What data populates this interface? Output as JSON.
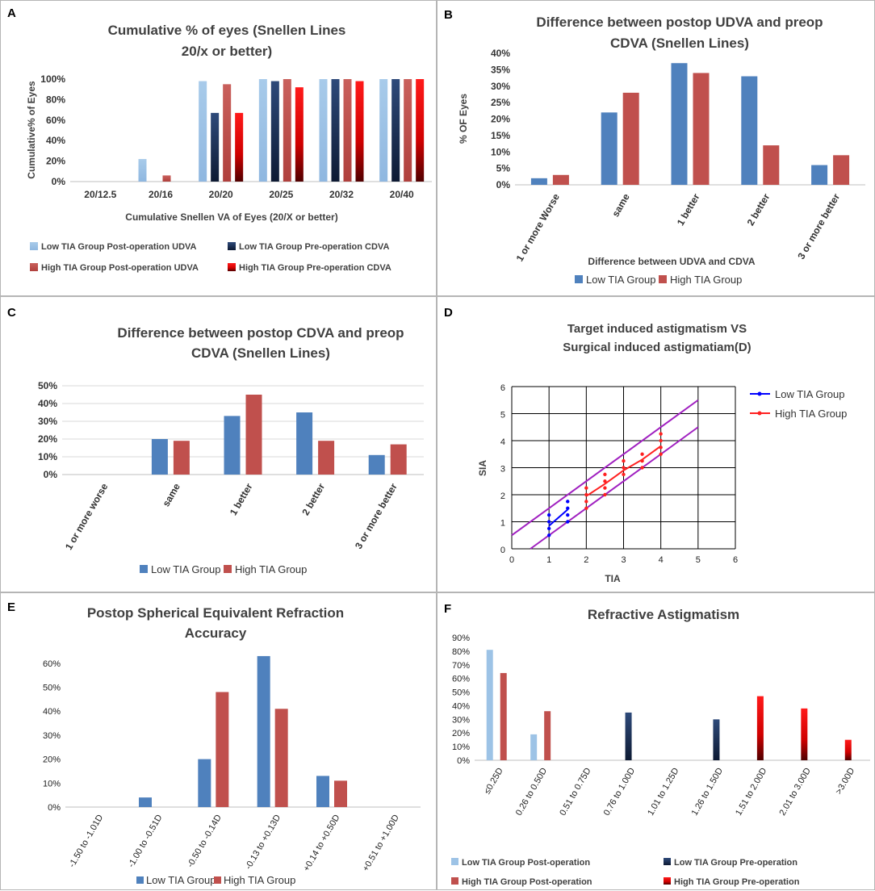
{
  "panels": {
    "a": "A",
    "b": "B",
    "c": "C",
    "d": "D",
    "e": "E",
    "f": "F"
  },
  "colors": {
    "low_post": "#9dc3e6",
    "low_pre": "#1f3864",
    "high_post": "#c0504d",
    "high_pre": "#ff0000",
    "low_group": "#4f81bd",
    "high_group": "#c0504d",
    "line_low": "#0000ff",
    "line_high": "#ff2020",
    "bound": "#a020c0"
  },
  "chart_data": [
    {
      "id": "A",
      "type": "bar",
      "title": [
        "Cumulative % of eyes (Snellen Lines",
        "20/x or better)"
      ],
      "xlabel": "Cumulative Snellen VA of Eyes (20/X or better)",
      "ylabel": "Cumulative% of Eyes",
      "ylim": [
        0,
        100
      ],
      "yticks": [
        0,
        20,
        40,
        60,
        80,
        100
      ],
      "ytick_labels": [
        "0%",
        "20%",
        "40%",
        "60%",
        "80%",
        "100%"
      ],
      "categories": [
        "20/12.5",
        "20/16",
        "20/20",
        "20/25",
        "20/32",
        "20/40"
      ],
      "series": [
        {
          "name": "Low TIA Group Post-operation UDVA",
          "values": [
            0,
            22,
            98,
            100,
            100,
            100
          ]
        },
        {
          "name": "Low TIA Group  Pre-operation CDVA",
          "values": [
            0,
            0,
            67,
            98,
            100,
            100
          ]
        },
        {
          "name": "High TIA Group  Post-operation UDVA",
          "values": [
            0,
            6,
            95,
            100,
            100,
            100
          ]
        },
        {
          "name": "High TIA Group Pre-operation CDVA",
          "values": [
            0,
            0,
            67,
            92,
            98,
            100
          ]
        }
      ]
    },
    {
      "id": "B",
      "type": "bar",
      "title": [
        "Difference between  postop UDVA and preop",
        "CDVA (Snellen Lines)"
      ],
      "xlabel": "Difference between UDVA and CDVA",
      "ylabel": "% OF Eyes",
      "ylim": [
        0,
        40
      ],
      "yticks": [
        0,
        5,
        10,
        15,
        20,
        25,
        30,
        35,
        40
      ],
      "ytick_labels": [
        "0%",
        "5%",
        "10%",
        "15%",
        "20%",
        "25%",
        "30%",
        "35%",
        "40%"
      ],
      "categories": [
        "1 or more Worse",
        "same",
        "1 better",
        "2 better",
        "3 or more better"
      ],
      "series": [
        {
          "name": "Low TIA Group",
          "values": [
            2,
            22,
            37,
            33,
            6
          ]
        },
        {
          "name": "High TIA Group",
          "values": [
            3,
            28,
            34,
            12,
            9
          ]
        }
      ]
    },
    {
      "id": "C",
      "type": "bar",
      "title": [
        "Difference between  postop CDVA and preop",
        "CDVA (Snellen Lines)"
      ],
      "xlabel": "",
      "ylabel": "",
      "ylim": [
        0,
        50
      ],
      "yticks": [
        0,
        10,
        20,
        30,
        40,
        50
      ],
      "ytick_labels": [
        "0%",
        "10%",
        "20%",
        "30%",
        "40%",
        "50%"
      ],
      "categories": [
        "1 or more worse",
        "same",
        "1 better",
        "2 better",
        "3 or more better"
      ],
      "series": [
        {
          "name": "Low TIA Group",
          "values": [
            0,
            20,
            33,
            35,
            11
          ]
        },
        {
          "name": "High TIA Group",
          "values": [
            0,
            19,
            45,
            19,
            17
          ]
        }
      ]
    },
    {
      "id": "D",
      "type": "line",
      "title": [
        "Target induced astigmatism VS",
        "Surgical induced astigmatiam(D)"
      ],
      "xlabel": "TIA",
      "ylabel": "SIA",
      "xlim": [
        0,
        6
      ],
      "ylim": [
        0,
        6
      ],
      "xticks": [
        "0",
        "1",
        "2",
        "3",
        "4",
        "5",
        "6"
      ],
      "yticks": [
        "0",
        "1",
        "2",
        "3",
        "4",
        "5",
        "6"
      ],
      "legend": [
        "Low TIA Group",
        "High TIA Group"
      ],
      "low_points": [
        [
          1,
          0.5
        ],
        [
          1,
          0.75
        ],
        [
          1,
          1.0
        ],
        [
          1,
          1.25
        ],
        [
          1.5,
          1.0
        ],
        [
          1.5,
          1.25
        ],
        [
          1.5,
          1.5
        ],
        [
          1.5,
          1.75
        ]
      ],
      "high_points": [
        [
          2,
          1.5
        ],
        [
          2,
          1.75
        ],
        [
          2,
          2.0
        ],
        [
          2,
          2.25
        ],
        [
          2.5,
          2.0
        ],
        [
          2.5,
          2.25
        ],
        [
          2.5,
          2.5
        ],
        [
          2.5,
          2.75
        ],
        [
          3,
          2.75
        ],
        [
          3,
          3.0
        ],
        [
          3,
          3.25
        ],
        [
          3.5,
          3.0
        ],
        [
          3.5,
          3.25
        ],
        [
          3.5,
          3.5
        ],
        [
          4,
          3.5
        ],
        [
          4,
          3.75
        ],
        [
          4,
          4.0
        ],
        [
          4,
          4.25
        ]
      ],
      "low_mean": [
        [
          1,
          0.85
        ],
        [
          1.5,
          1.45
        ]
      ],
      "high_mean": [
        [
          2,
          1.95
        ],
        [
          2.5,
          2.4
        ],
        [
          3,
          2.9
        ],
        [
          3.5,
          3.3
        ],
        [
          4,
          3.8
        ]
      ],
      "bounds": [
        [
          [
            0,
            0.5
          ],
          [
            5,
            5.5
          ]
        ],
        [
          [
            0.5,
            0
          ],
          [
            5,
            4.5
          ]
        ]
      ]
    },
    {
      "id": "E",
      "type": "bar",
      "title": [
        "Postop Spherical Equivalent Refraction",
        "Accuracy"
      ],
      "xlabel": "",
      "ylabel": "",
      "ylim": [
        0,
        65
      ],
      "yticks": [
        0,
        10,
        20,
        30,
        40,
        50,
        60
      ],
      "ytick_labels": [
        "0%",
        "10%",
        "20%",
        "30%",
        "40%",
        "50%",
        "60%"
      ],
      "categories": [
        "-1.50 to -1.01D",
        "-1.00 to -0.51D",
        "-0.50 to -0.14D",
        "-0.13 to +0.13D",
        "+0.14 to +0.50D",
        "+0.51 to +1.00D"
      ],
      "series": [
        {
          "name": "Low TIA Group",
          "values": [
            0,
            4,
            20,
            63,
            13,
            0
          ]
        },
        {
          "name": "High TIA Group",
          "values": [
            0,
            0,
            48,
            41,
            11,
            0
          ]
        }
      ]
    },
    {
      "id": "F",
      "type": "bar",
      "title": [
        "Refractive Astigmatism"
      ],
      "xlabel": "",
      "ylabel": "",
      "ylim": [
        0,
        90
      ],
      "yticks": [
        0,
        10,
        20,
        30,
        40,
        50,
        60,
        70,
        80,
        90
      ],
      "ytick_labels": [
        "0%",
        "10%",
        "20%",
        "30%",
        "40%",
        "50%",
        "60%",
        "70%",
        "80%",
        "90%"
      ],
      "categories": [
        "≤0.25D",
        "0.26 to 0.50D",
        "0.51 to 0.75D",
        "0.76 to 1.00D",
        "1.01 to 1.25D",
        "1.26 to 1.50D",
        "1.51 to 2.00D",
        "2.01 to 3.00D",
        ">3.00D"
      ],
      "series": [
        {
          "name": "Low TIA Group Post-operation",
          "values": [
            81,
            19,
            0,
            0,
            0,
            0,
            0,
            0,
            0
          ]
        },
        {
          "name": "Low TIA Group Pre-operation",
          "values": [
            0,
            0,
            0,
            35,
            0,
            30,
            0,
            0,
            0
          ]
        },
        {
          "name": "High TIA Group Post-operation",
          "values": [
            64,
            36,
            0,
            0,
            0,
            0,
            0,
            0,
            0
          ]
        },
        {
          "name": "High TIA Group Pre-operation",
          "values": [
            0,
            0,
            0,
            0,
            0,
            0,
            47,
            38,
            15
          ]
        }
      ]
    }
  ]
}
